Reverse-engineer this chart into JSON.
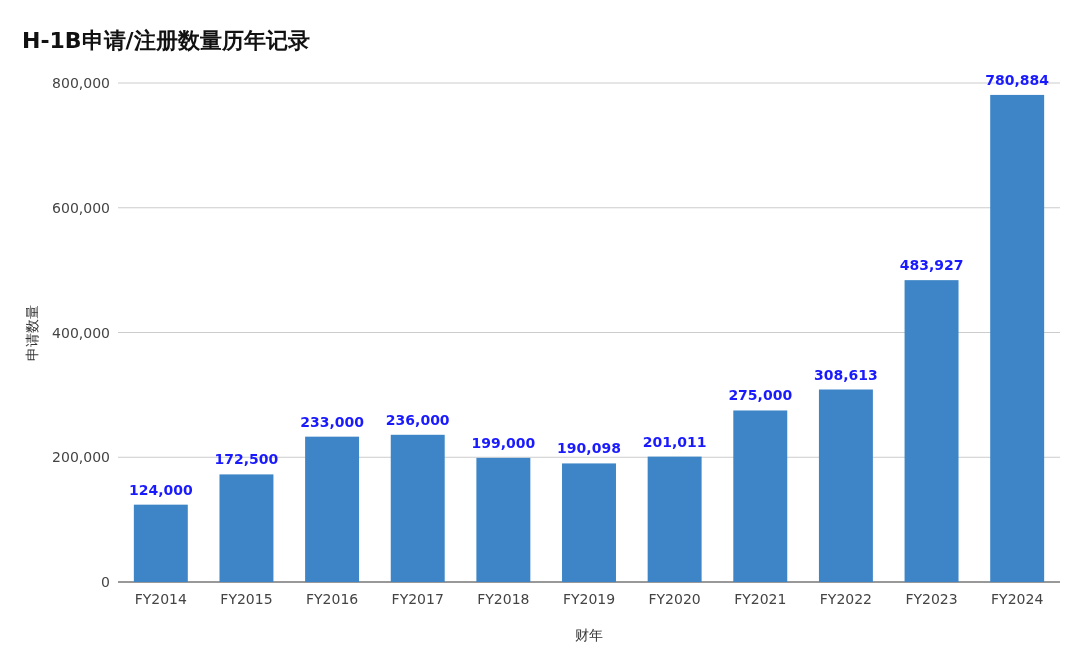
{
  "chart_data": {
    "type": "bar",
    "title": "H-1B申请/注册数量历年记录",
    "xlabel": "财年",
    "ylabel": "申请数量",
    "categories": [
      "FY2014",
      "FY2015",
      "FY2016",
      "FY2017",
      "FY2018",
      "FY2019",
      "FY2020",
      "FY2021",
      "FY2022",
      "FY2023",
      "FY2024"
    ],
    "values": [
      124000,
      172500,
      233000,
      236000,
      199000,
      190098,
      201011,
      275000,
      308613,
      483927,
      780884
    ],
    "value_labels": [
      "124,000",
      "172,500",
      "233,000",
      "236,000",
      "199,000",
      "190,098",
      "201,011",
      "275,000",
      "308,613",
      "483,927",
      "780,884"
    ],
    "color": "#3d85c6",
    "ylim": [
      0,
      800000
    ],
    "yticks": [
      {
        "value": 0,
        "label": "0"
      },
      {
        "value": 200000,
        "label": "200,000"
      },
      {
        "value": 400000,
        "label": "400,000"
      },
      {
        "value": 600000,
        "label": "600,000"
      },
      {
        "value": 800000,
        "label": "800,000"
      }
    ],
    "grid": "y"
  }
}
